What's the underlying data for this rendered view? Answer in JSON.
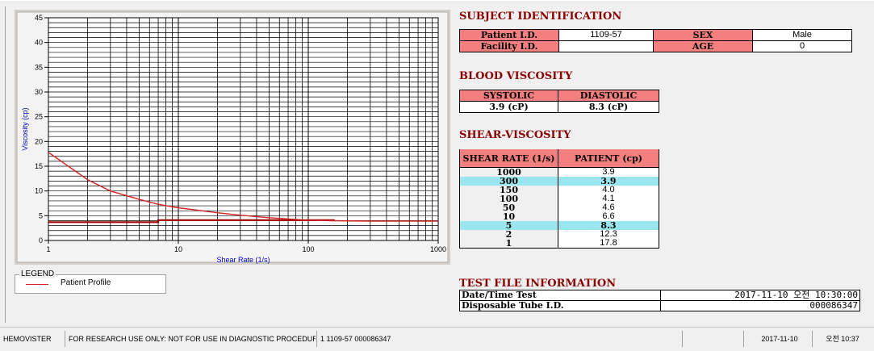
{
  "chart_data": {
    "type": "line",
    "title": "",
    "xlabel": "Shear Rate (1/s)",
    "ylabel": "Viscosity (cp)",
    "xscale": "log",
    "xlim": [
      1,
      1000
    ],
    "ylim": [
      0,
      45
    ],
    "x_ticks": [
      "1",
      "10",
      "100",
      "1000"
    ],
    "y_ticks": [
      "0",
      "5",
      "10",
      "15",
      "20",
      "25",
      "30",
      "35",
      "40",
      "45"
    ],
    "y_gridlines_every": 1,
    "grid": true,
    "series": [
      {
        "name": "Patient Profile",
        "color": "#d22222",
        "x": [
          1,
          2,
          3,
          5,
          7,
          10,
          20,
          30,
          50,
          100,
          150,
          300,
          1000
        ],
        "y": [
          17.8,
          12.3,
          10.0,
          8.3,
          7.3,
          6.6,
          5.6,
          5.1,
          4.6,
          4.1,
          4.0,
          3.9,
          3.9
        ]
      },
      {
        "name": "",
        "color": "#a00000",
        "x": [
          1,
          7,
          7,
          160
        ],
        "y": [
          3.7,
          3.7,
          4.1,
          4.1
        ]
      }
    ]
  },
  "legend": {
    "title": "LEGEND",
    "item": "Patient Profile"
  },
  "subject": {
    "title": "SUBJECT IDENTIFICATION",
    "patient_id_label": "Patient I.D.",
    "patient_id": "1109-57",
    "sex_label": "SEX",
    "sex": "Male",
    "facility_id_label": "Facility I.D.",
    "facility_id": "",
    "age_label": "AGE",
    "age": "0"
  },
  "blood": {
    "title": "BLOOD VISCOSITY",
    "systolic_label": "SYSTOLIC",
    "diastolic_label": "DIASTOLIC",
    "systolic": "3.9 (cP)",
    "diastolic": "8.3 (cP)"
  },
  "shear": {
    "title": "SHEAR-VISCOSITY",
    "col_rate": "SHEAR RATE (1/s)",
    "col_patient": "PATIENT (cp)",
    "rows": [
      {
        "rate": "1000",
        "value": "3.9"
      },
      {
        "rate": "300",
        "value": "3.9"
      },
      {
        "rate": "150",
        "value": "4.0"
      },
      {
        "rate": "100",
        "value": "4.1"
      },
      {
        "rate": "50",
        "value": "4.6"
      },
      {
        "rate": "10",
        "value": "6.6"
      },
      {
        "rate": "5",
        "value": "8.3"
      },
      {
        "rate": "2",
        "value": "12.3"
      },
      {
        "rate": "1",
        "value": "17.8"
      }
    ]
  },
  "file": {
    "title": "TEST FILE INFORMATION",
    "datetime_label": "Date/Time Test",
    "datetime": "2017-11-10  오전 10:30:00",
    "tube_label": "Disposable Tube I.D.",
    "tube": "000086347"
  },
  "status": {
    "app": "HEMOVISTER",
    "notice": "FOR RESEARCH USE ONLY: NOT FOR USE IN DIAGNOSTIC PROCEDURES",
    "record": "1  1109-57  000086347",
    "blank": "",
    "date": "2017-11-10",
    "time": "오전 10:37"
  }
}
